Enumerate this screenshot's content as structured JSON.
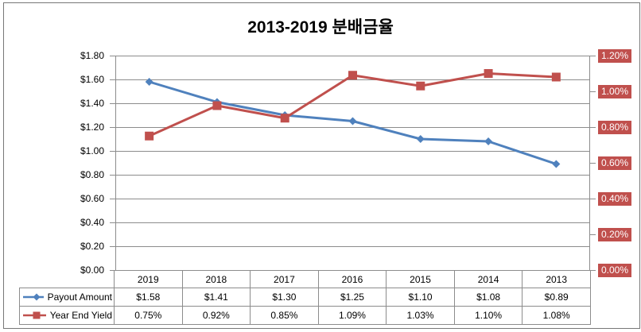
{
  "title": "2013-2019 분배금율",
  "chart_data": {
    "type": "line",
    "title": "2013-2019 분배금율",
    "categories": [
      "2019",
      "2018",
      "2017",
      "2016",
      "2015",
      "2014",
      "2013"
    ],
    "series": [
      {
        "name": "Payout Amount",
        "axis": "left",
        "marker": "diamond",
        "color": "#4F81BD",
        "values": [
          1.58,
          1.41,
          1.3,
          1.25,
          1.1,
          1.08,
          0.89
        ],
        "labels": [
          "$1.58",
          "$1.41",
          "$1.30",
          "$1.25",
          "$1.10",
          "$1.08",
          "$0.89"
        ]
      },
      {
        "name": "Year End Yield",
        "axis": "right",
        "marker": "square",
        "color": "#C0504D",
        "values": [
          0.75,
          0.92,
          0.85,
          1.09,
          1.03,
          1.1,
          1.08
        ],
        "labels": [
          "0.75%",
          "0.92%",
          "0.85%",
          "1.09%",
          "1.03%",
          "1.10%",
          "1.08%"
        ]
      }
    ],
    "left_axis": {
      "min": 0,
      "max": 1.8,
      "step": 0.2,
      "tick_labels": [
        "$1.80",
        "$1.60",
        "$1.40",
        "$1.20",
        "$1.00",
        "$0.80",
        "$0.60",
        "$0.40",
        "$0.20",
        "$0.00"
      ]
    },
    "right_axis": {
      "min": 0,
      "max": 1.2,
      "step": 0.2,
      "tick_labels": [
        "1.20%",
        "1.00%",
        "0.80%",
        "0.60%",
        "0.40%",
        "0.20%",
        "0.00%"
      ]
    },
    "grid": true,
    "legend_position": "data-table-left"
  },
  "colors": {
    "payout_series": "#4F81BD",
    "yield_series": "#C0504D",
    "gridline": "#8C8C8C",
    "plot_border": "#8C8C8C",
    "table_border": "#8C8C8C",
    "right_label_bg": "#C0504D",
    "right_label_text": "#FFFFFF",
    "text": "#000000",
    "background": "#FFFFFF"
  }
}
